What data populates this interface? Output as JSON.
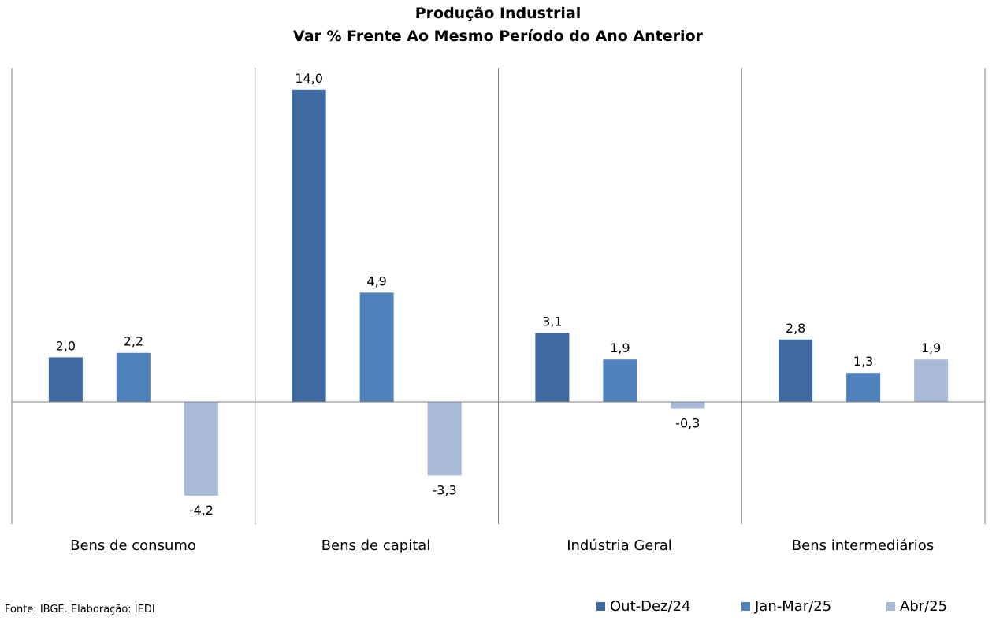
{
  "chart_data": {
    "type": "bar",
    "title": "Produção Industrial",
    "subtitle": "Var % Frente Ao Mesmo Período do Ano Anterior",
    "categories": [
      "Bens de consumo",
      "Bens de capital",
      "Indústria Geral",
      "Bens intermediários"
    ],
    "series": [
      {
        "name": "Out-Dez/24",
        "color": "#3F6A9F",
        "values": [
          2.0,
          14.0,
          3.1,
          2.8
        ],
        "labels": [
          "2,0",
          "14,0",
          "3,1",
          "2,8"
        ]
      },
      {
        "name": "Jan-Mar/25",
        "color": "#4F81BD",
        "values": [
          2.2,
          4.9,
          1.9,
          1.3
        ],
        "labels": [
          "2,2",
          "4,9",
          "1,9",
          "1,3"
        ]
      },
      {
        "name": "Abr/25",
        "color": "#A9B9D8",
        "values": [
          -4.2,
          -3.3,
          -0.3,
          1.9
        ],
        "labels": [
          "-4,2",
          "-3,3",
          "-0,3",
          "1,9"
        ]
      }
    ],
    "ylim": [
      -5.5,
      15.0
    ],
    "grid": false,
    "legend": "bottom-right"
  },
  "source": "Fonte: IBGE. Elaboração: IEDI"
}
